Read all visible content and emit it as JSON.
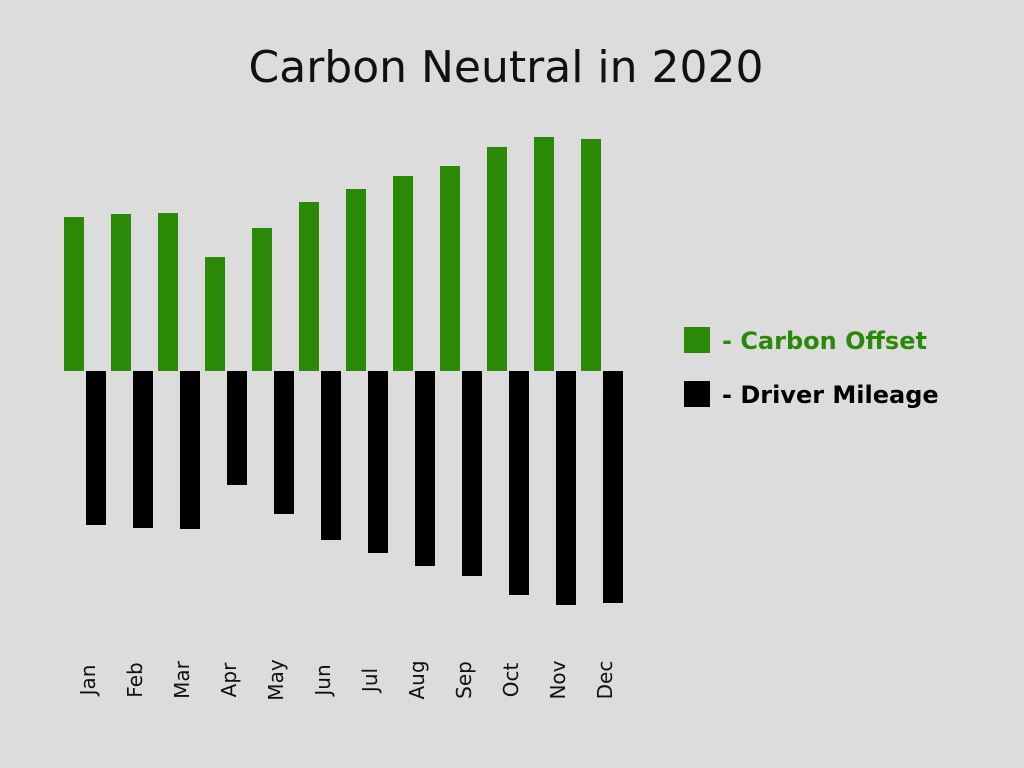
{
  "chart_data": {
    "type": "bar",
    "title": "Carbon Neutral in 2020",
    "xlabel": "",
    "ylabel": "",
    "grid": false,
    "legend_position": "right",
    "categories": [
      "Jan",
      "Feb",
      "Mar",
      "Apr",
      "May",
      "Jun",
      "Jul",
      "Aug",
      "Sep",
      "Oct",
      "Nov",
      "Dec"
    ],
    "series": [
      {
        "name": "- Carbon Offset",
        "color": "#2a8a07",
        "direction": "up",
        "values": [
          154,
          157,
          158,
          114,
          143,
          169,
          182,
          195,
          205,
          224,
          234,
          232
        ]
      },
      {
        "name": "- Driver Mileage",
        "color": "#000000",
        "direction": "down",
        "values": [
          154,
          157,
          158,
          114,
          143,
          169,
          182,
          195,
          205,
          224,
          234,
          232
        ]
      }
    ],
    "ylim": [
      -250,
      250
    ]
  }
}
